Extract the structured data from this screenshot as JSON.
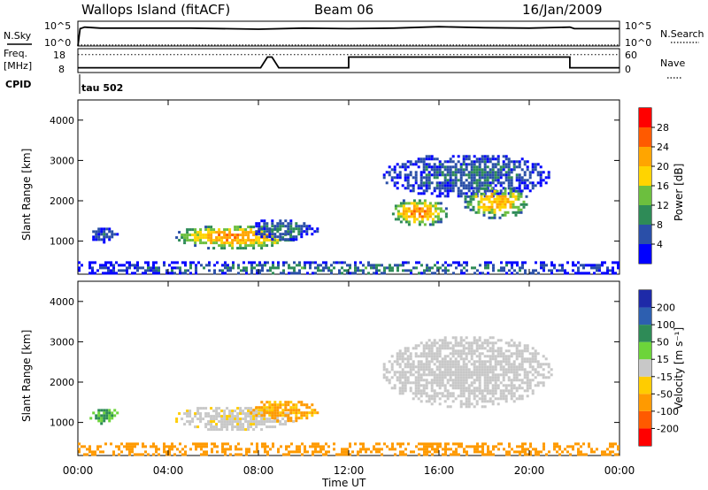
{
  "header": {
    "station": "Wallops Island (fitACF)",
    "beam": "Beam 06",
    "date": "16/Jan/2009"
  },
  "panel_top": {
    "left_label": "N.Sky",
    "right_label": "N.Search",
    "left_ticks": [
      "10^5",
      "10^0"
    ],
    "right_ticks": [
      "10^5",
      "10^0"
    ]
  },
  "panel_freq": {
    "left_label_1": "Freq.",
    "left_label_2": "[MHz]",
    "right_label": "Nave",
    "left_ticks": [
      "18",
      "8"
    ],
    "right_ticks": [
      "60",
      "0"
    ]
  },
  "cpid": {
    "label": "CPID",
    "value": "tau 502"
  },
  "power_panel": {
    "ylabel": "Slant Range [km]",
    "yticks": [
      "4000",
      "3000",
      "2000",
      "1000"
    ],
    "colorbar_label": "Power [dB]",
    "colorbar_ticks": [
      "28",
      "24",
      "20",
      "16",
      "12",
      "8",
      "4"
    ]
  },
  "velocity_panel": {
    "ylabel": "Slant Range [km]",
    "yticks": [
      "4000",
      "3000",
      "2000",
      "1000"
    ],
    "colorbar_label": "Velocity [m s⁻¹]",
    "colorbar_ticks": [
      "200",
      "100",
      "50",
      "15",
      "-15",
      "-50",
      "-100",
      "-200"
    ]
  },
  "xaxis": {
    "ticks": [
      "00:00",
      "04:00",
      "08:00",
      "12:00",
      "16:00",
      "20:00",
      "00:00"
    ],
    "label": "Time UT"
  },
  "colors": {
    "power_scale": [
      "#0000ff",
      "#2a4fa8",
      "#2e8b57",
      "#6cbf3e",
      "#ffd400",
      "#ffa500",
      "#ff5a00",
      "#ff0000"
    ],
    "velocity_scale": [
      "#1e2aa8",
      "#2d5fb0",
      "#2e8b57",
      "#6cd43a",
      "#c8c8c8",
      "#ffcc00",
      "#ff9a00",
      "#ff5a00",
      "#ff0000"
    ]
  },
  "chart_data": [
    {
      "type": "line",
      "name_left": "N.Sky",
      "name_right": "N.Search",
      "x_range": [
        0,
        24
      ],
      "x": [
        0.0,
        0.1,
        0.3,
        1.0,
        3.0,
        5.0,
        8.0,
        10.0,
        12.0,
        14.0,
        16.0,
        18.0,
        20.0,
        21.8,
        22.0,
        24.0
      ],
      "nsky": [
        0.0,
        3.5,
        3.8,
        3.6,
        3.6,
        3.6,
        3.4,
        3.6,
        3.5,
        3.6,
        3.9,
        3.7,
        3.6,
        3.8,
        3.5,
        3.5
      ],
      "nsearch": [
        0.2,
        0.2,
        0.2,
        0.2,
        0.2,
        0.2,
        0.2,
        0.2,
        0.2,
        0.2,
        0.2,
        0.2,
        0.2,
        0.2,
        0.2,
        0.2
      ],
      "yscale": "log",
      "ylim": [
        0,
        5
      ]
    },
    {
      "type": "line",
      "name_left": "Freq.",
      "name_right": "Nave",
      "x_range": [
        0,
        24
      ],
      "freq_x": [
        0.0,
        8.1,
        8.4,
        8.6,
        8.9,
        12.0,
        12.0,
        21.8,
        21.8,
        24.0
      ],
      "freq_y": [
        10.0,
        10.0,
        14.5,
        14.5,
        10.0,
        10.0,
        14.5,
        14.5,
        10.0,
        10.0
      ],
      "nave_level": 45,
      "freq_ylim": [
        8,
        18
      ],
      "nave_ylim": [
        0,
        60
      ]
    },
    {
      "type": "heatmap",
      "name": "Power",
      "x_range": [
        0,
        24
      ],
      "ylim": [
        180,
        4500
      ],
      "ylabel": "Slant Range [km]",
      "color_range": [
        0,
        30
      ],
      "blobs": [
        {
          "t0": 4.2,
          "t1": 9.6,
          "r0": 820,
          "r1": 1450,
          "peak": 22
        },
        {
          "t0": 7.5,
          "t1": 10.6,
          "r0": 1050,
          "r1": 1600,
          "peak": 8
        },
        {
          "t0": 0.4,
          "t1": 1.8,
          "r0": 1000,
          "r1": 1400,
          "peak": 6
        },
        {
          "t0": 13.4,
          "t1": 21.0,
          "r0": 2100,
          "r1": 3200,
          "peak": 7
        },
        {
          "t0": 13.8,
          "t1": 16.4,
          "r0": 1400,
          "r1": 2100,
          "peak": 22
        },
        {
          "t0": 17.0,
          "t1": 20.0,
          "r0": 1600,
          "r1": 2400,
          "peak": 20
        },
        {
          "t0": 0.0,
          "t1": 24.0,
          "r0": 200,
          "r1": 500,
          "peak": 9
        }
      ]
    },
    {
      "type": "heatmap",
      "name": "Velocity",
      "x_range": [
        0,
        24
      ],
      "ylim": [
        180,
        4500
      ],
      "ylabel": "Slant Range [km]",
      "color_range": [
        -200,
        200
      ],
      "blobs": [
        {
          "t0": 4.2,
          "t1": 9.6,
          "r0": 820,
          "r1": 1450,
          "value": -5
        },
        {
          "t0": 7.5,
          "t1": 10.6,
          "r0": 1050,
          "r1": 1600,
          "value": -40
        },
        {
          "t0": 0.4,
          "t1": 1.8,
          "r0": 1000,
          "r1": 1400,
          "value": 30
        },
        {
          "t0": 13.4,
          "t1": 21.0,
          "r0": 1400,
          "r1": 3200,
          "value": 0
        },
        {
          "t0": 0.0,
          "t1": 24.0,
          "r0": 200,
          "r1": 500,
          "value": -55
        }
      ]
    }
  ]
}
